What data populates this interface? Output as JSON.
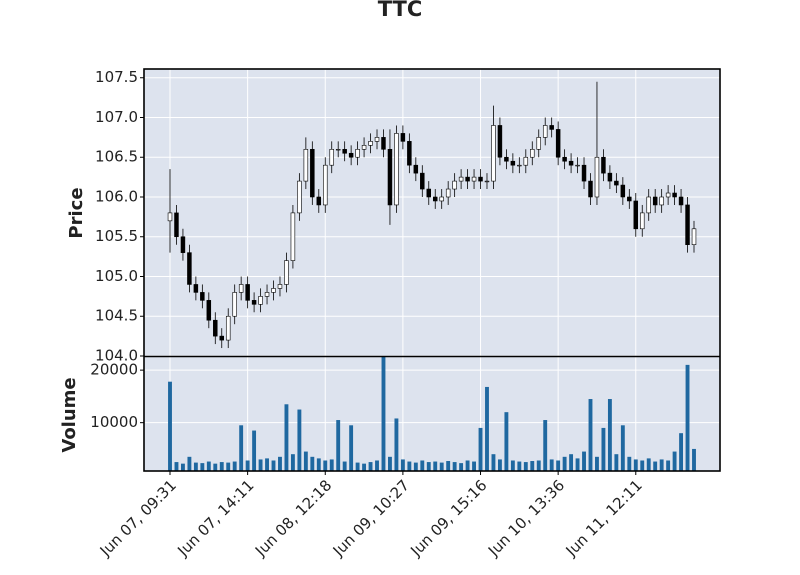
{
  "chart_data": {
    "type": "candlestick",
    "title": "TTC",
    "ylabel": "Price",
    "volume_label": "Volume",
    "categories": [
      "Jun 07, 09:31",
      null,
      null,
      null,
      null,
      null,
      null,
      null,
      null,
      null,
      null,
      null,
      "Jun 07, 14:11",
      null,
      null,
      null,
      null,
      null,
      null,
      null,
      null,
      null,
      null,
      null,
      "Jun 08, 12:18",
      null,
      null,
      null,
      null,
      null,
      null,
      null,
      null,
      null,
      null,
      null,
      "Jun 09, 10:27",
      null,
      null,
      null,
      null,
      null,
      null,
      null,
      null,
      null,
      null,
      null,
      "Jun 09, 15:16",
      null,
      null,
      null,
      null,
      null,
      null,
      null,
      null,
      null,
      null,
      null,
      "Jun 10, 13:36",
      null,
      null,
      null,
      null,
      null,
      null,
      null,
      null,
      null,
      null,
      null,
      "Jun 11, 12:11",
      null,
      null,
      null,
      null,
      null,
      null,
      null,
      null,
      null
    ],
    "open": [
      105.7,
      105.8,
      105.5,
      105.3,
      104.9,
      104.8,
      104.7,
      104.45,
      104.25,
      104.2,
      104.5,
      104.8,
      104.9,
      104.7,
      104.65,
      104.75,
      104.8,
      104.85,
      104.9,
      105.2,
      105.8,
      106.2,
      106.6,
      106.0,
      105.9,
      106.4,
      106.6,
      106.6,
      106.55,
      106.5,
      106.6,
      106.65,
      106.7,
      106.75,
      106.6,
      105.9,
      106.8,
      106.7,
      106.4,
      106.3,
      106.1,
      106.0,
      105.95,
      106.0,
      106.1,
      106.2,
      106.25,
      106.2,
      106.25,
      106.2,
      106.2,
      106.9,
      106.5,
      106.45,
      106.4,
      106.4,
      106.5,
      106.6,
      106.75,
      106.9,
      106.85,
      106.5,
      106.45,
      106.4,
      106.4,
      106.2,
      106.0,
      106.5,
      106.3,
      106.2,
      106.15,
      106.0,
      105.95,
      105.6,
      105.8,
      106.0,
      105.9,
      106.0,
      106.05,
      106.0,
      105.9,
      105.4
    ],
    "high": [
      106.35,
      105.9,
      105.6,
      105.4,
      105.0,
      104.9,
      104.8,
      104.55,
      104.35,
      104.6,
      104.9,
      105.0,
      105.0,
      104.8,
      104.85,
      104.9,
      104.95,
      105.0,
      105.3,
      105.9,
      106.3,
      106.75,
      106.7,
      106.1,
      106.5,
      106.7,
      106.7,
      106.7,
      106.65,
      106.7,
      106.75,
      106.8,
      106.85,
      106.85,
      106.85,
      106.9,
      106.9,
      106.8,
      106.5,
      106.4,
      106.2,
      106.1,
      106.1,
      106.2,
      106.3,
      106.35,
      106.35,
      106.35,
      106.35,
      106.3,
      107.15,
      107.0,
      106.6,
      106.55,
      106.5,
      106.6,
      106.7,
      106.85,
      107.0,
      107.0,
      106.95,
      106.6,
      106.55,
      106.5,
      106.5,
      106.3,
      107.45,
      106.6,
      106.4,
      106.3,
      106.25,
      106.1,
      106.05,
      105.9,
      106.1,
      106.1,
      106.1,
      106.15,
      106.15,
      106.1,
      106.0,
      105.7
    ],
    "low": [
      105.3,
      105.4,
      105.2,
      104.8,
      104.7,
      104.6,
      104.35,
      104.15,
      104.1,
      104.1,
      104.4,
      104.7,
      104.6,
      104.55,
      104.55,
      104.65,
      104.7,
      104.75,
      104.8,
      105.1,
      105.7,
      106.1,
      105.9,
      105.8,
      105.8,
      106.3,
      106.5,
      106.45,
      106.4,
      106.4,
      106.5,
      106.55,
      106.6,
      106.5,
      105.65,
      105.8,
      106.6,
      106.3,
      106.2,
      106.0,
      105.9,
      105.85,
      105.85,
      105.9,
      106.0,
      106.1,
      106.1,
      106.1,
      106.1,
      106.1,
      106.1,
      106.4,
      106.35,
      106.3,
      106.3,
      106.3,
      106.4,
      106.5,
      106.65,
      106.75,
      106.4,
      106.35,
      106.3,
      106.3,
      106.1,
      105.9,
      105.9,
      106.2,
      106.1,
      106.05,
      105.9,
      105.85,
      105.5,
      105.5,
      105.7,
      105.8,
      105.8,
      105.9,
      105.9,
      105.8,
      105.3,
      105.3
    ],
    "close": [
      105.8,
      105.5,
      105.3,
      104.9,
      104.8,
      104.7,
      104.45,
      104.25,
      104.2,
      104.5,
      104.8,
      104.9,
      104.7,
      104.65,
      104.75,
      104.8,
      104.85,
      104.9,
      105.2,
      105.8,
      106.2,
      106.6,
      106.0,
      105.9,
      106.4,
      106.6,
      106.6,
      106.55,
      106.5,
      106.6,
      106.65,
      106.7,
      106.75,
      106.6,
      105.9,
      106.8,
      106.7,
      106.4,
      106.3,
      106.1,
      106.0,
      105.95,
      106.0,
      106.1,
      106.2,
      106.25,
      106.2,
      106.25,
      106.2,
      106.2,
      106.9,
      106.5,
      106.45,
      106.4,
      106.4,
      106.5,
      106.6,
      106.75,
      106.9,
      106.85,
      106.5,
      106.45,
      106.4,
      106.4,
      106.2,
      106.0,
      106.5,
      106.3,
      106.2,
      106.15,
      106.0,
      105.95,
      105.6,
      105.8,
      106.0,
      105.9,
      106.0,
      106.05,
      106.0,
      105.9,
      105.4,
      105.6
    ],
    "volume": [
      17800,
      2500,
      2200,
      3500,
      2400,
      2300,
      2600,
      2200,
      2500,
      2400,
      2600,
      9500,
      2800,
      8500,
      3000,
      3200,
      2800,
      3500,
      13500,
      4000,
      12500,
      4500,
      3500,
      3200,
      2800,
      3000,
      10500,
      2600,
      9500,
      2400,
      2200,
      2500,
      2800,
      22500,
      3500,
      10800,
      3000,
      2600,
      2400,
      2800,
      2500,
      2600,
      2400,
      2700,
      2500,
      2300,
      2800,
      2600,
      9000,
      16800,
      4000,
      3000,
      12000,
      2800,
      2600,
      2500,
      2700,
      2800,
      10500,
      3000,
      2800,
      3500,
      4000,
      3200,
      4500,
      14500,
      3500,
      9000,
      14500,
      4000,
      9500,
      3500,
      3000,
      2800,
      3200,
      2600,
      3000,
      2800,
      4500,
      8000,
      21000,
      5000
    ],
    "ylim": [
      104.0,
      107.61
    ],
    "yticks": [
      {
        "value": 104,
        "label": "104.0"
      },
      104.5,
      {
        "value": 105,
        "label": "105.0"
      },
      105.5,
      {
        "value": 106,
        "label": "106.0"
      },
      106.5,
      {
        "value": 107,
        "label": "107.0"
      },
      107.5
    ],
    "volume_ylim": [
      800,
      22500
    ],
    "volume_yticks": [
      10000,
      20000
    ],
    "up_color": "#ffffff",
    "down_color": "#000000",
    "edge_color": "#000000",
    "volume_color": "#1f68a0",
    "panel_color": "#dde3ee",
    "grid": true
  }
}
